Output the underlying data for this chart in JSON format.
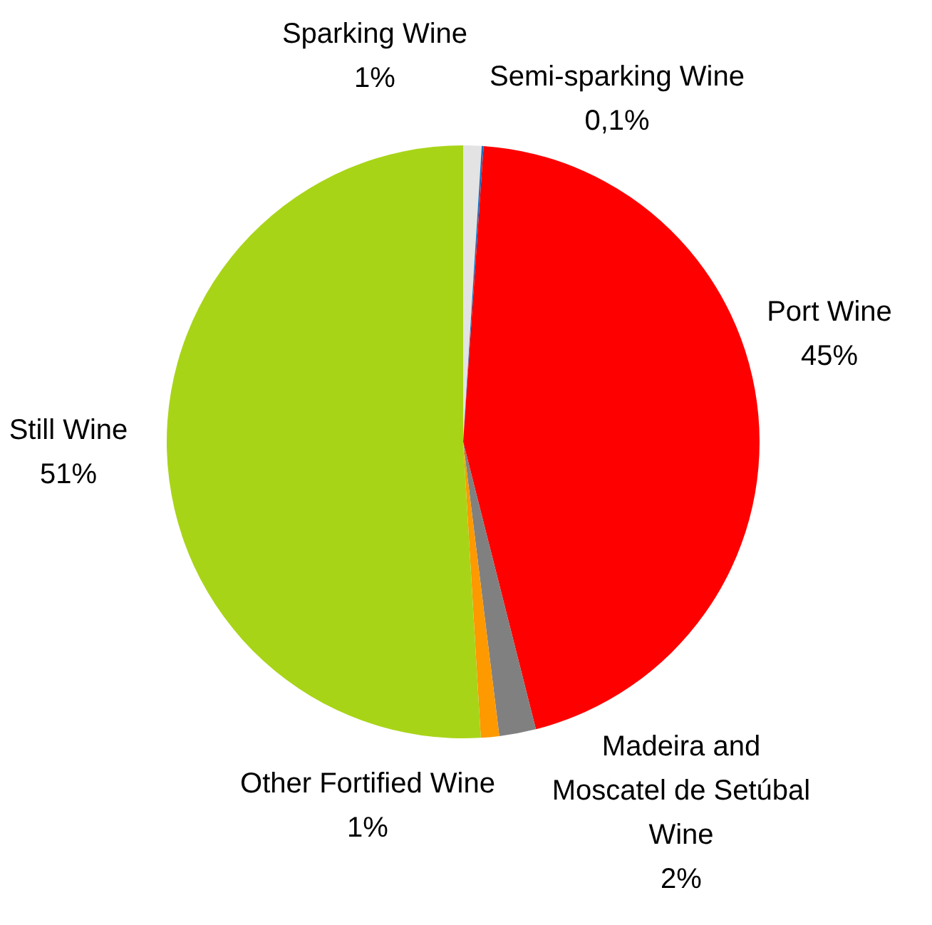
{
  "chart_data": {
    "type": "pie",
    "categories": [
      "Sparking Wine",
      "Semi-sparking Wine",
      "Port Wine",
      "Madeira and Moscatel de Setúbal Wine",
      "Other Fortified Wine",
      "Still Wine"
    ],
    "values": [
      1,
      0.1,
      45,
      2,
      1,
      51
    ],
    "value_labels": [
      "1%",
      "0,1%",
      "45%",
      "2%",
      "1%",
      "51%"
    ],
    "colors": [
      "#e3e3e3",
      "#1f6fbf",
      "#ff0000",
      "#808080",
      "#ff9900",
      "#a8d418"
    ]
  }
}
